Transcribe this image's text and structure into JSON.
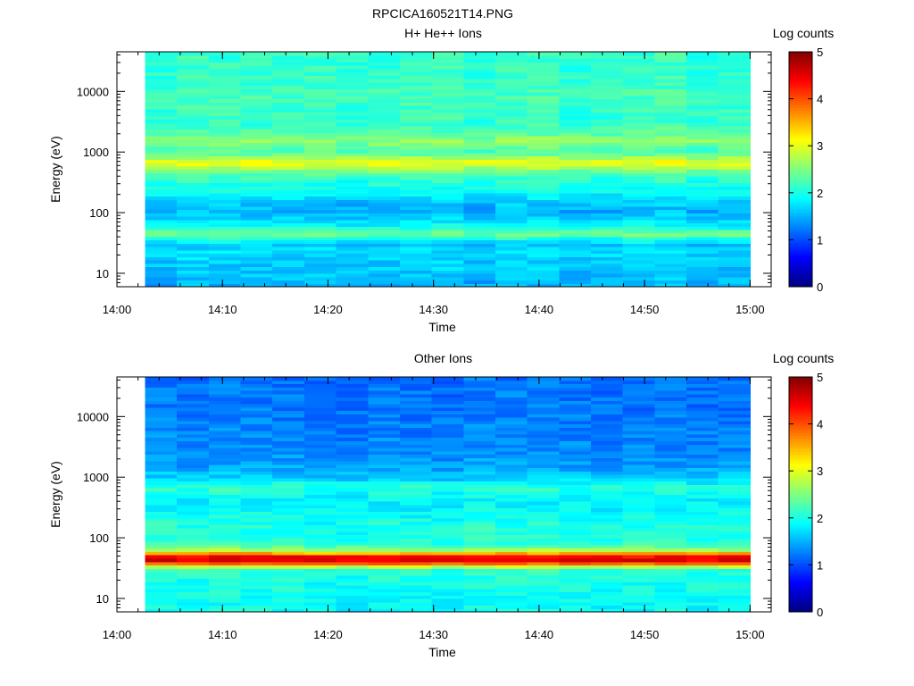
{
  "figure": {
    "title": "RPCICA160521T14.PNG"
  },
  "chart_data": [
    {
      "type": "heatmap",
      "title": "H+ He++ Ions",
      "xlabel": "Time",
      "ylabel": "Energy (eV)",
      "x_ticks": [
        "14:00",
        "14:10",
        "14:20",
        "14:30",
        "14:40",
        "14:50",
        "15:00"
      ],
      "x_range": [
        "14:00",
        "15:02"
      ],
      "data_time_range": [
        "14:02:40",
        "15:00"
      ],
      "time_bins": 19,
      "y_scale": "log",
      "y_ticks": [
        "10",
        "100",
        "1000",
        "10000"
      ],
      "y_range": [
        6,
        45000
      ],
      "colorbar": {
        "title": "Log counts",
        "ticks": [
          "0",
          "1",
          "2",
          "3",
          "4",
          "5"
        ],
        "range": [
          0,
          5
        ],
        "colormap": "jet"
      },
      "energy_profile": [
        {
          "energy": 7,
          "log_counts": 1.5
        },
        {
          "energy": 10,
          "log_counts": 1.6
        },
        {
          "energy": 15,
          "log_counts": 1.6
        },
        {
          "energy": 22,
          "log_counts": 1.7
        },
        {
          "energy": 30,
          "log_counts": 1.6
        },
        {
          "energy": 38,
          "log_counts": 2.0
        },
        {
          "energy": 45,
          "log_counts": 2.5
        },
        {
          "energy": 55,
          "log_counts": 2.0
        },
        {
          "energy": 75,
          "log_counts": 1.7
        },
        {
          "energy": 110,
          "log_counts": 1.5
        },
        {
          "energy": 150,
          "log_counts": 1.6
        },
        {
          "energy": 220,
          "log_counts": 1.9
        },
        {
          "energy": 300,
          "log_counts": 2.0
        },
        {
          "energy": 420,
          "log_counts": 2.2
        },
        {
          "energy": 560,
          "log_counts": 2.7
        },
        {
          "energy": 680,
          "log_counts": 3.1
        },
        {
          "energy": 800,
          "log_counts": 2.7
        },
        {
          "energy": 1000,
          "log_counts": 2.2
        },
        {
          "energy": 1300,
          "log_counts": 2.4
        },
        {
          "energy": 1600,
          "log_counts": 2.6
        },
        {
          "energy": 2000,
          "log_counts": 2.3
        },
        {
          "energy": 3000,
          "log_counts": 2.1
        },
        {
          "energy": 5000,
          "log_counts": 2.15
        },
        {
          "energy": 8000,
          "log_counts": 2.2
        },
        {
          "energy": 13000,
          "log_counts": 2.15
        },
        {
          "energy": 22000,
          "log_counts": 2.1
        },
        {
          "energy": 38000,
          "log_counts": 2.1
        }
      ]
    },
    {
      "type": "heatmap",
      "title": "Other Ions",
      "xlabel": "Time",
      "ylabel": "Energy (eV)",
      "x_ticks": [
        "14:00",
        "14:10",
        "14:20",
        "14:30",
        "14:40",
        "14:50",
        "15:00"
      ],
      "x_range": [
        "14:00",
        "15:02"
      ],
      "data_time_range": [
        "14:02:40",
        "15:00"
      ],
      "time_bins": 19,
      "y_scale": "log",
      "y_ticks": [
        "10",
        "100",
        "1000",
        "10000"
      ],
      "y_range": [
        6,
        45000
      ],
      "colorbar": {
        "title": "Log counts",
        "ticks": [
          "0",
          "1",
          "2",
          "3",
          "4",
          "5"
        ],
        "range": [
          0,
          5
        ],
        "colormap": "jet"
      },
      "energy_profile": [
        {
          "energy": 7,
          "log_counts": 1.9
        },
        {
          "energy": 10,
          "log_counts": 1.9
        },
        {
          "energy": 15,
          "log_counts": 1.95
        },
        {
          "energy": 22,
          "log_counts": 2.0
        },
        {
          "energy": 30,
          "log_counts": 2.1
        },
        {
          "energy": 35,
          "log_counts": 3.1
        },
        {
          "energy": 40,
          "log_counts": 4.3
        },
        {
          "energy": 46,
          "log_counts": 4.7
        },
        {
          "energy": 53,
          "log_counts": 4.0
        },
        {
          "energy": 60,
          "log_counts": 2.8
        },
        {
          "energy": 80,
          "log_counts": 2.1
        },
        {
          "energy": 110,
          "log_counts": 2.0
        },
        {
          "energy": 160,
          "log_counts": 2.0
        },
        {
          "energy": 250,
          "log_counts": 1.9
        },
        {
          "energy": 400,
          "log_counts": 1.8
        },
        {
          "energy": 600,
          "log_counts": 2.0
        },
        {
          "energy": 700,
          "log_counts": 2.1
        },
        {
          "energy": 900,
          "log_counts": 1.7
        },
        {
          "energy": 1500,
          "log_counts": 1.4
        },
        {
          "energy": 3000,
          "log_counts": 1.3
        },
        {
          "energy": 6000,
          "log_counts": 1.25
        },
        {
          "energy": 12000,
          "log_counts": 1.2
        },
        {
          "energy": 25000,
          "log_counts": 1.2
        },
        {
          "energy": 40000,
          "log_counts": 1.15
        }
      ]
    }
  ]
}
